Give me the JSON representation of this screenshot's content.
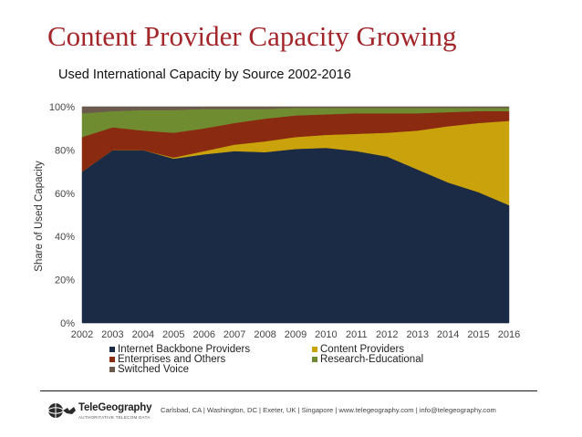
{
  "slide": {
    "title": "Content Provider Capacity Growing",
    "subtitle": "Used International Capacity by Source 2002-2016"
  },
  "footer": {
    "logo_name": "TeleGeography",
    "logo_tagline": "AUTHORITATIVE TELECOM DATA",
    "text": "Carlsbad, CA | Washington, DC | Exeter, UK | Singapore | www.telegeography.com | info@telegeography.com"
  },
  "chart_data": {
    "type": "area",
    "stacked": true,
    "x": [
      "2002",
      "2003",
      "2004",
      "2005",
      "2006",
      "2007",
      "2008",
      "2009",
      "2010",
      "2011",
      "2012",
      "2013",
      "2014",
      "2015",
      "2016"
    ],
    "ylabel": "Share of Used Capacity",
    "yticks": [
      "0%",
      "20%",
      "40%",
      "60%",
      "80%",
      "100%"
    ],
    "ylim": [
      0,
      100
    ],
    "grid": true,
    "legend_position": "bottom",
    "series": [
      {
        "name": "Internet Backbone Providers",
        "color": "#1b2a45",
        "values": [
          70,
          80,
          80,
          76,
          78,
          79.5,
          79,
          80.5,
          81,
          79.5,
          77,
          71,
          65,
          60.5,
          54.5
        ]
      },
      {
        "name": "Content Providers",
        "color": "#c9a20c",
        "values": [
          0,
          0,
          0,
          0.5,
          1.5,
          3,
          5,
          5.5,
          6,
          8,
          11,
          18,
          26,
          32,
          39
        ]
      },
      {
        "name": "Enterprises and Others",
        "color": "#8a2a10",
        "values": [
          16,
          10.5,
          9,
          11.5,
          10.5,
          10,
          10.5,
          10,
          9.5,
          9.5,
          9,
          8,
          6.5,
          5.5,
          4.5
        ]
      },
      {
        "name": "Research-Educational",
        "color": "#6f8c31",
        "values": [
          11,
          7.5,
          9.5,
          10.5,
          9,
          6.5,
          4.5,
          3.5,
          3,
          2.5,
          2.5,
          2.5,
          2,
          1.5,
          1.5
        ]
      },
      {
        "name": "Switched Voice",
        "color": "#6b5a4d",
        "values": [
          3,
          2,
          1.5,
          1.5,
          1,
          1,
          1,
          0.5,
          0.5,
          0.5,
          0.5,
          0.5,
          0.5,
          0.5,
          0.5
        ]
      }
    ]
  }
}
